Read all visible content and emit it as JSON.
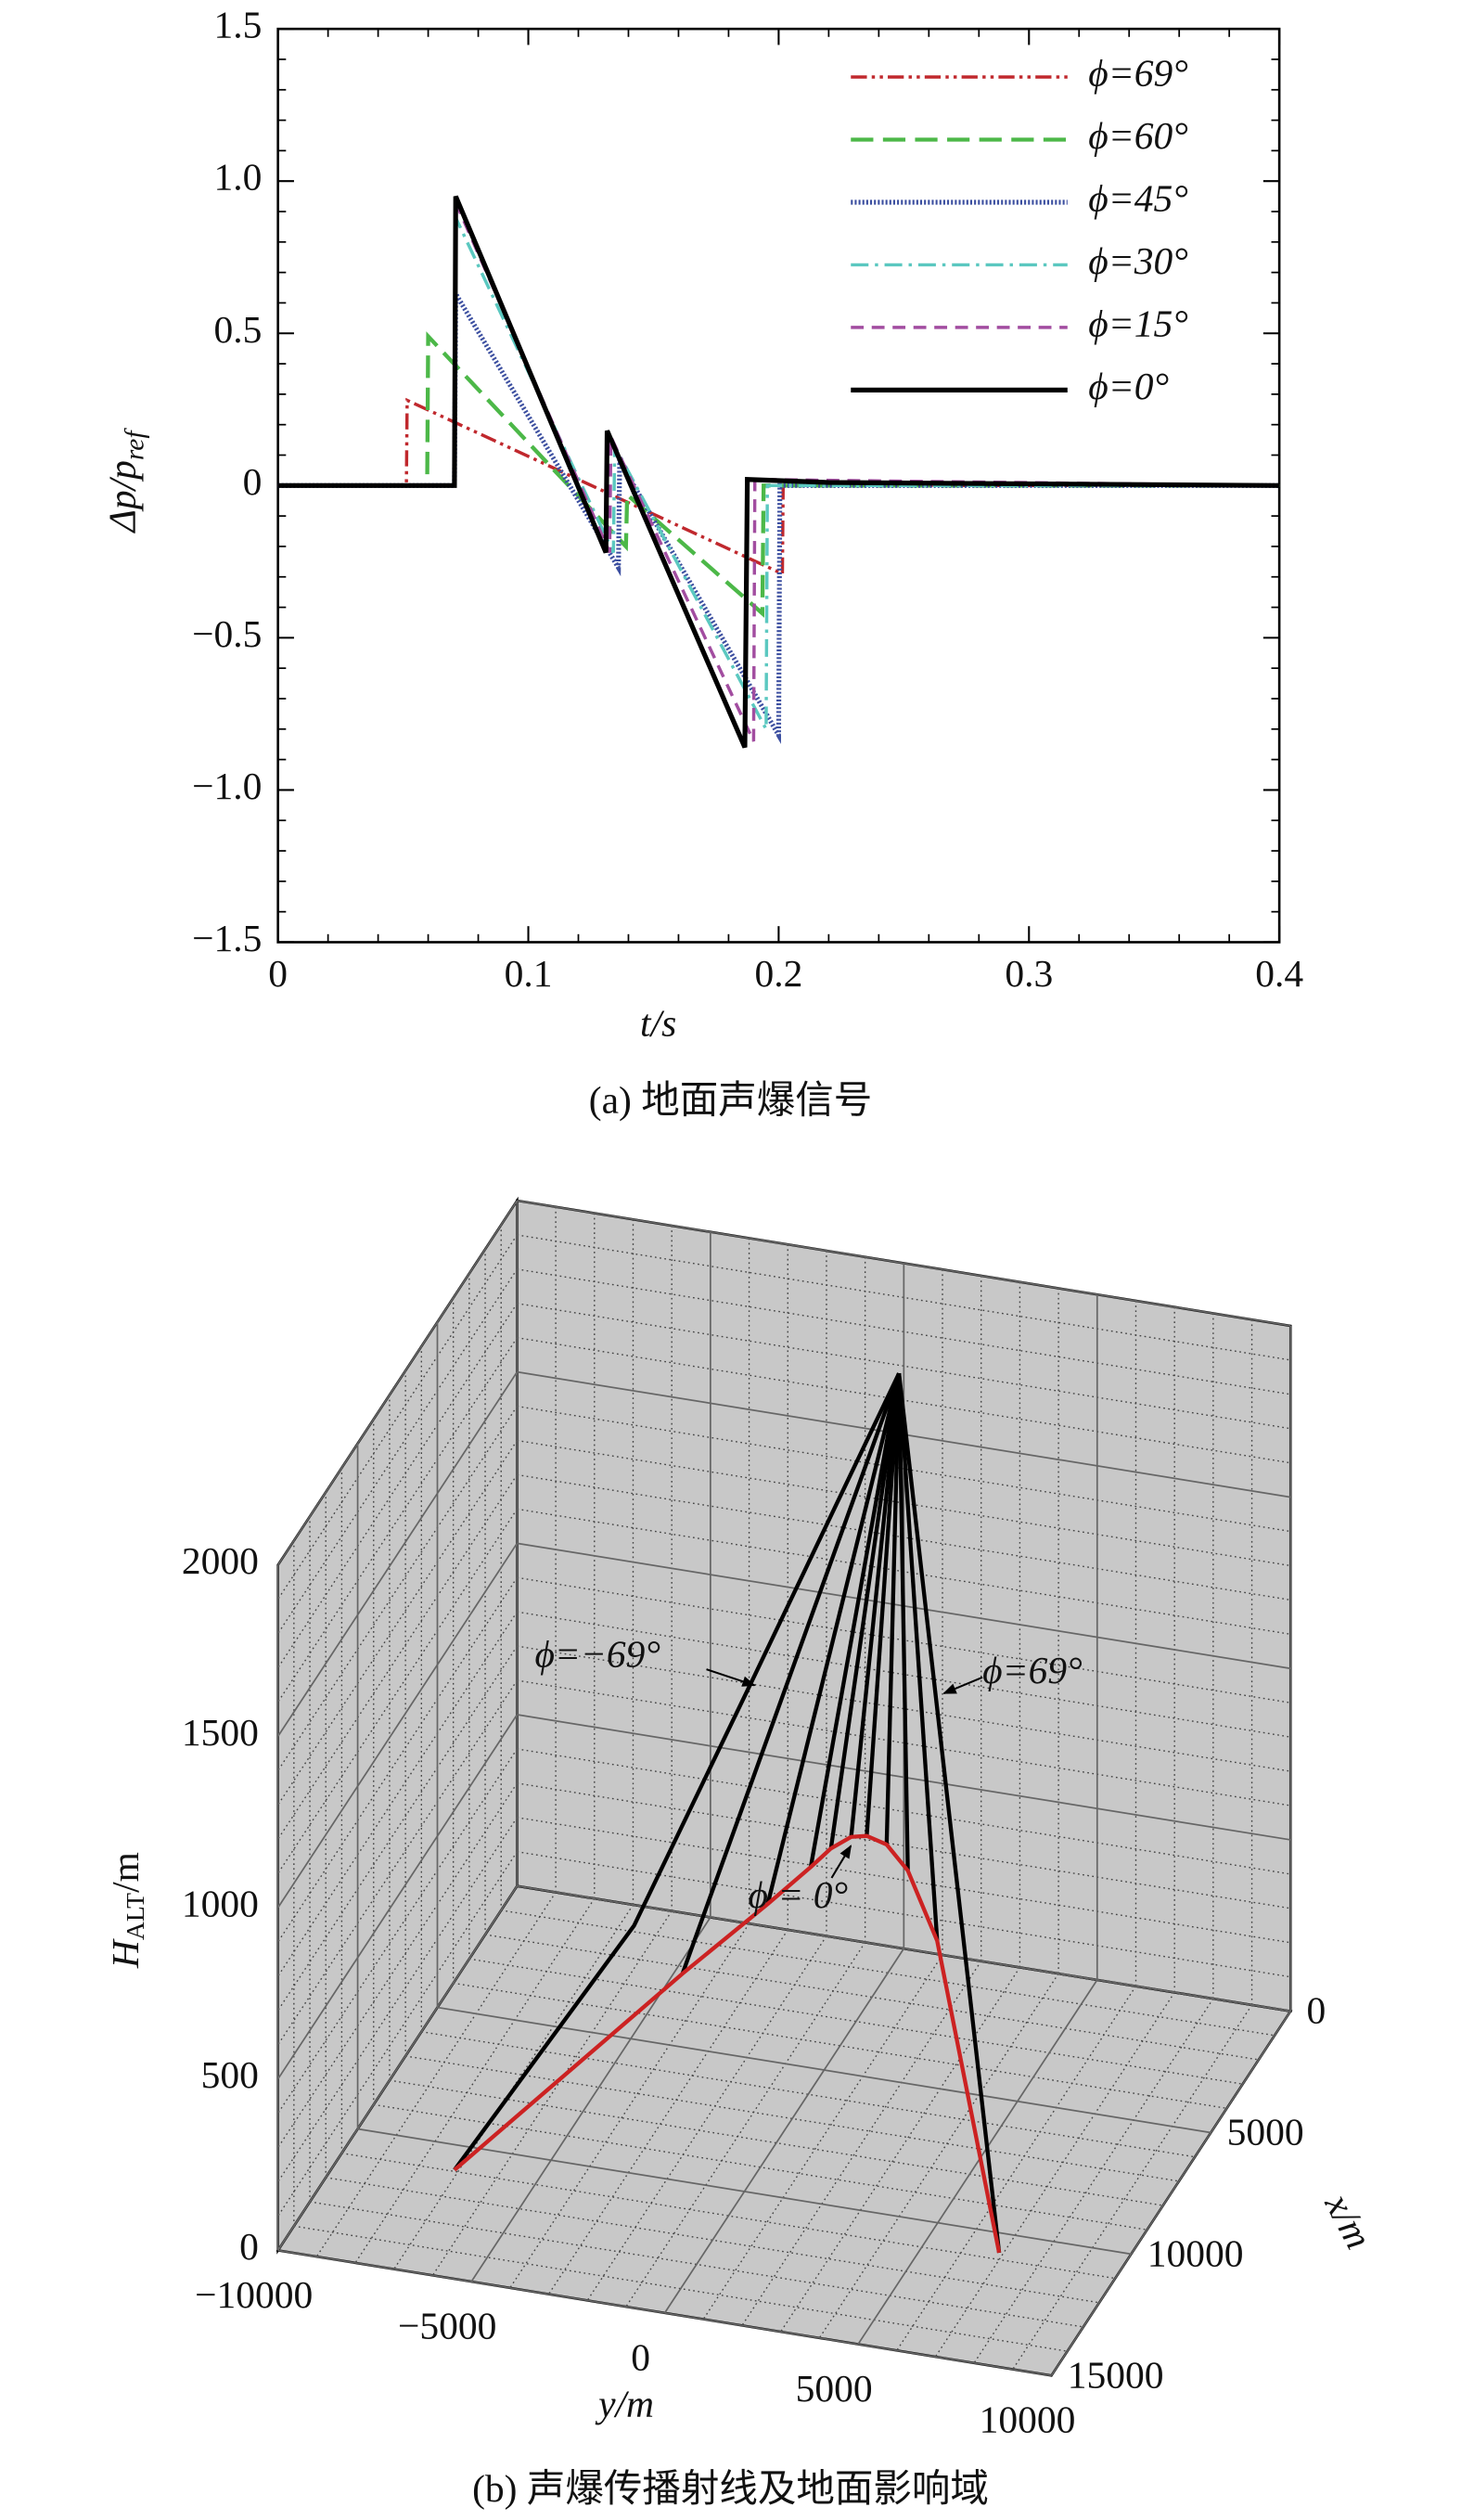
{
  "chart_data": [
    {
      "type": "line",
      "caption": "(a) 地面声爆信号",
      "x_label": "t/s",
      "y_label": {
        "text": "Δp/p",
        "sub": "ref"
      },
      "xlim": [
        0,
        0.4
      ],
      "xticks": [
        0,
        0.1,
        0.2,
        0.3,
        0.4
      ],
      "ylim": [
        -1.5,
        1.5
      ],
      "yticks": [
        {
          "value": -1.5,
          "label": "−1.5"
        },
        {
          "value": -1,
          "label": "−1.0"
        },
        {
          "value": -0.5,
          "label": "−0.5"
        },
        0,
        0.5,
        {
          "value": 1,
          "label": "1.0"
        },
        1.5
      ],
      "legend": "upper right",
      "series": [
        {
          "name": "ϕ=69°",
          "color": "#c0282d",
          "style": "dash-dot-dot",
          "x": [
            0,
            0.0513,
            0.0516,
            0.2015,
            0.2018,
            0.4
          ],
          "values": [
            0,
            0,
            0.28,
            -0.29,
            0,
            0
          ]
        },
        {
          "name": "ϕ=60°",
          "color": "#4cb848",
          "style": "dash",
          "x": [
            0,
            0.0596,
            0.06,
            0.139,
            0.1395,
            0.1935,
            0.194,
            0.4
          ],
          "values": [
            0,
            0,
            0.49,
            -0.2,
            -0.03,
            -0.42,
            0,
            0
          ]
        },
        {
          "name": "ϕ=45°",
          "color": "#3c4fa0",
          "style": "dot",
          "x": [
            0,
            0.0705,
            0.071,
            0.136,
            0.1365,
            0.2,
            0.2005,
            0.4
          ],
          "values": [
            0,
            0,
            0.63,
            -0.27,
            0.08,
            -0.82,
            0,
            0
          ]
        },
        {
          "name": "ϕ=30°",
          "color": "#5bc8c0",
          "style": "dash-dot",
          "x": [
            0,
            0.0705,
            0.071,
            0.134,
            0.1345,
            0.195,
            0.1955,
            0.4
          ],
          "values": [
            0,
            0,
            0.88,
            -0.22,
            0.13,
            -0.8,
            0,
            0
          ]
        },
        {
          "name": "ϕ=15°",
          "color": "#a24da0",
          "style": "dash-short",
          "x": [
            0,
            0.0705,
            0.071,
            0.1325,
            0.133,
            0.19,
            0.1905,
            0.4
          ],
          "values": [
            0,
            0,
            0.93,
            -0.22,
            0.16,
            -0.84,
            0.02,
            0
          ]
        },
        {
          "name": "ϕ=0°",
          "color": "#000000",
          "style": "solid",
          "x": [
            0,
            0.0705,
            0.071,
            0.131,
            0.1315,
            0.1865,
            0.1875,
            0.22,
            0.4
          ],
          "values": [
            0,
            0,
            0.95,
            -0.22,
            0.18,
            -0.86,
            0.02,
            0.01,
            0
          ]
        }
      ]
    },
    {
      "type": "line3d",
      "caption": "(b) 声爆传播射线及地面影响域",
      "y_label": "y/m",
      "x_label": "x/m",
      "z_label": {
        "text": "H",
        "sub": "ALT",
        "unit": "/m"
      },
      "ylim": [
        -10000,
        10000
      ],
      "yticks": [
        {
          "value": -10000,
          "label": "−10000"
        },
        {
          "value": -5000,
          "label": "−5000"
        },
        0,
        5000,
        10000
      ],
      "xlim": [
        0,
        15000
      ],
      "xticks": [
        0,
        5000,
        10000,
        15000
      ],
      "zlim": [
        0,
        2000
      ],
      "zticks": [
        0,
        500,
        1000,
        1500,
        2000
      ],
      "grid": true,
      "wall_color": "#c8c8c8",
      "annotations": [
        "ϕ=−69°",
        "ϕ=69°",
        "ϕ = 0°"
      ],
      "rays": {
        "color": "#000000",
        "lines": [
          {
            "y": [
              0,
              -2000,
              -4500,
              -7000
            ],
            "x": [
              300,
              4500,
              6000,
              11200
            ],
            "z": [
              1700,
              1080,
              410,
              20
            ]
          },
          {
            "y": [
              0,
              -3000
            ],
            "x": [
              300,
              6600
            ],
            "z": [
              1700,
              340
            ]
          },
          {
            "y": [
              0,
              -1500
            ],
            "x": [
              300,
              4900
            ],
            "z": [
              1700,
              450
            ]
          },
          {
            "y": [
              0,
              -800
            ],
            "x": [
              300,
              3900
            ],
            "z": [
              1700,
              500
            ]
          },
          {
            "y": [
              0,
              -400
            ],
            "x": [
              300,
              3600
            ],
            "z": [
              1700,
              540
            ]
          },
          {
            "y": [
              0,
              0
            ],
            "x": [
              300,
              3300
            ],
            "z": [
              1700,
              560
            ]
          },
          {
            "y": [
              0,
              400
            ],
            "x": [
              300,
              3300
            ],
            "z": [
              1700,
              570
            ]
          },
          {
            "y": [
              0,
              1000
            ],
            "x": [
              300,
              3500
            ],
            "z": [
              1700,
              570
            ]
          },
          {
            "y": [
              0,
              2000
            ],
            "x": [
              300,
              4600
            ],
            "z": [
              1700,
              590
            ]
          },
          {
            "y": [
              0,
              3500
            ],
            "x": [
              300,
              6400
            ],
            "z": [
              1700,
              540
            ]
          },
          {
            "y": [
              0,
              7000
            ],
            "x": [
              300,
              11000
            ],
            "z": [
              1700,
              20
            ]
          }
        ]
      },
      "footprint": {
        "color": "#cc2222",
        "y": [
          -7000,
          -3000,
          -1500,
          -800,
          -400,
          0,
          400,
          1000,
          2000,
          3500,
          7000
        ],
        "x": [
          11200,
          6600,
          4900,
          3900,
          3600,
          3300,
          3300,
          3500,
          4600,
          6400,
          11000
        ],
        "z": [
          20,
          340,
          450,
          500,
          540,
          560,
          570,
          570,
          590,
          540,
          20
        ]
      }
    }
  ]
}
